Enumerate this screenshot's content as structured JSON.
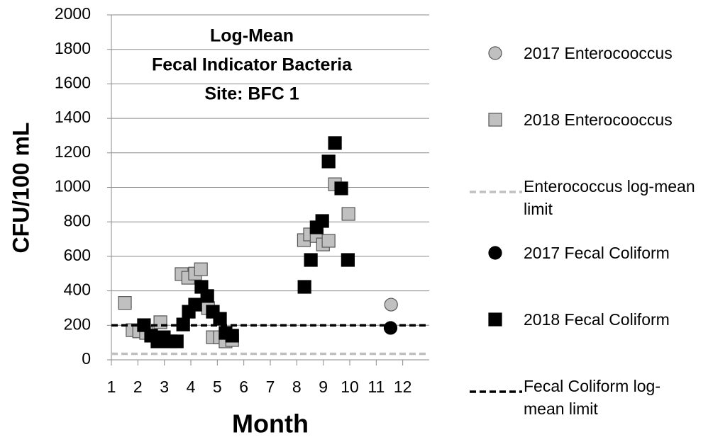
{
  "chart_data": {
    "type": "scatter",
    "title": [
      "Log-Mean",
      "Fecal Indicator Bacteria",
      "Site: BFC 1"
    ],
    "xlabel": "Month",
    "ylabel": "CFU/100 mL",
    "xlim": [
      1,
      13
    ],
    "xticks": [
      1,
      2,
      3,
      4,
      5,
      6,
      7,
      8,
      9,
      10,
      11,
      12
    ],
    "ylim": [
      0,
      2000
    ],
    "yticks": [
      0,
      200,
      400,
      600,
      800,
      1000,
      1200,
      1400,
      1600,
      1800,
      2000
    ],
    "grid": true,
    "series": [
      {
        "name": "2017 Enterocooccus",
        "marker": "circle",
        "color": "#c0c0c0",
        "x": [
          11.56
        ],
        "values": [
          320
        ]
      },
      {
        "name": "2018 Enterocooccus",
        "marker": "square",
        "color": "#c0c0c0",
        "x": [
          1.51,
          1.8,
          2.05,
          2.31,
          2.85,
          3.65,
          3.9,
          4.16,
          4.38,
          4.65,
          4.83,
          5.1,
          5.31,
          5.56,
          8.27,
          8.5,
          8.75,
          8.99,
          9.2,
          9.44,
          9.95
        ],
        "values": [
          330,
          172,
          165,
          156,
          218,
          497,
          476,
          500,
          525,
          300,
          131,
          131,
          107,
          115,
          694,
          727,
          718,
          669,
          690,
          1018,
          846
        ]
      },
      {
        "name": "Enterococcus log-mean limit",
        "marker": "dashed-line",
        "color": "#c0c0c0",
        "value": 35
      },
      {
        "name": "2017 Fecal Coliform",
        "marker": "circle",
        "color": "#000000",
        "x": [
          11.54
        ],
        "values": [
          185
        ]
      },
      {
        "name": "2018 Fecal Coliform",
        "marker": "square",
        "color": "#000000",
        "x": [
          2.23,
          2.5,
          2.74,
          2.98,
          3.23,
          3.47,
          3.71,
          3.92,
          4.16,
          4.4,
          4.62,
          4.83,
          5.1,
          5.31,
          5.56,
          8.29,
          8.53,
          8.75,
          8.96,
          9.2,
          9.44,
          9.68,
          9.93
        ],
        "values": [
          201,
          140,
          107,
          131,
          107,
          107,
          205,
          279,
          320,
          423,
          370,
          279,
          238,
          156,
          140,
          423,
          579,
          768,
          805,
          1150,
          1257,
          994,
          579
        ]
      },
      {
        "name": "Fecal Coliform log-mean limit",
        "marker": "dashed-line",
        "color": "#000000",
        "value": 200
      }
    ]
  }
}
